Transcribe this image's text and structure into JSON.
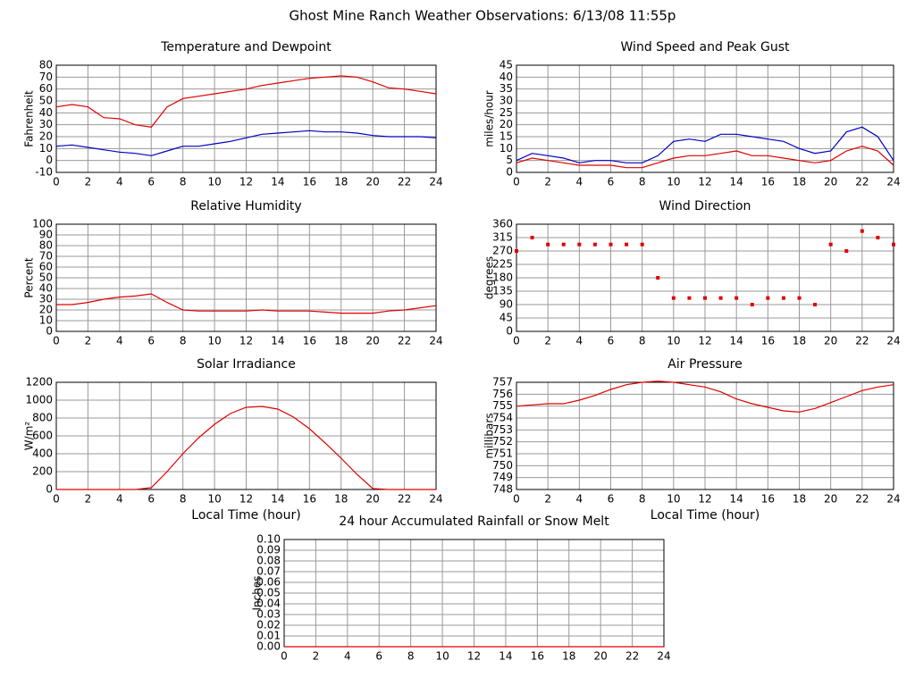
{
  "title": "Ghost Mine Ranch Weather Observations: 6/13/08 11:55p",
  "chart_data": [
    {
      "type": "line",
      "title": "Temperature and Dewpoint",
      "ylabel": "Fahrenheit",
      "x": [
        0,
        1,
        2,
        3,
        4,
        5,
        6,
        7,
        8,
        9,
        10,
        11,
        12,
        13,
        14,
        15,
        16,
        17,
        18,
        19,
        20,
        21,
        22,
        23,
        24
      ],
      "xlim": [
        0,
        24
      ],
      "xticks": [
        0,
        2,
        4,
        6,
        8,
        10,
        12,
        14,
        16,
        18,
        20,
        22,
        24
      ],
      "ylim": [
        -10,
        80
      ],
      "yticks": [
        -10,
        0,
        10,
        20,
        30,
        40,
        50,
        60,
        70,
        80
      ],
      "grid": true,
      "series": [
        {
          "color": "#e00000",
          "values": [
            45,
            47,
            45,
            36,
            35,
            30,
            28,
            45,
            52,
            54,
            56,
            58,
            60,
            63,
            65,
            67,
            69,
            70,
            71,
            70,
            66,
            61,
            60,
            58,
            56
          ]
        },
        {
          "color": "#0000c0",
          "values": [
            12,
            13,
            11,
            9,
            7,
            6,
            4,
            8,
            12,
            12,
            14,
            16,
            19,
            22,
            23,
            24,
            25,
            24,
            24,
            23,
            21,
            20,
            20,
            20,
            19
          ]
        }
      ]
    },
    {
      "type": "line",
      "title": "Wind Speed and Peak Gust",
      "ylabel": "miles/hour",
      "x": [
        0,
        1,
        2,
        3,
        4,
        5,
        6,
        7,
        8,
        9,
        10,
        11,
        12,
        13,
        14,
        15,
        16,
        17,
        18,
        19,
        20,
        21,
        22,
        23,
        24
      ],
      "xlim": [
        0,
        24
      ],
      "xticks": [
        0,
        2,
        4,
        6,
        8,
        10,
        12,
        14,
        16,
        18,
        20,
        22,
        24
      ],
      "ylim": [
        0,
        45
      ],
      "yticks": [
        0,
        5,
        10,
        15,
        20,
        25,
        30,
        35,
        40,
        45
      ],
      "grid": true,
      "series": [
        {
          "color": "#0000c0",
          "values": [
            5,
            8,
            7,
            6,
            4,
            5,
            5,
            4,
            4,
            7,
            13,
            14,
            13,
            16,
            16,
            15,
            14,
            13,
            10,
            8,
            9,
            17,
            19,
            15,
            5
          ]
        },
        {
          "color": "#e00000",
          "values": [
            4,
            6,
            5,
            4,
            3,
            3,
            3,
            2,
            2,
            4,
            6,
            7,
            7,
            8,
            9,
            7,
            7,
            6,
            5,
            4,
            5,
            9,
            11,
            9,
            3
          ]
        }
      ]
    },
    {
      "type": "line",
      "title": "Relative Humidity",
      "ylabel": "Percent",
      "x": [
        0,
        1,
        2,
        3,
        4,
        5,
        6,
        7,
        8,
        9,
        10,
        11,
        12,
        13,
        14,
        15,
        16,
        17,
        18,
        19,
        20,
        21,
        22,
        23,
        24
      ],
      "xlim": [
        0,
        24
      ],
      "xticks": [
        0,
        2,
        4,
        6,
        8,
        10,
        12,
        14,
        16,
        18,
        20,
        22,
        24
      ],
      "ylim": [
        0,
        100
      ],
      "yticks": [
        0,
        10,
        20,
        30,
        40,
        50,
        60,
        70,
        80,
        90,
        100
      ],
      "grid": true,
      "series": [
        {
          "color": "#e00000",
          "values": [
            25,
            25,
            27,
            30,
            32,
            33,
            35,
            27,
            20,
            19,
            19,
            19,
            19,
            20,
            19,
            19,
            19,
            18,
            17,
            17,
            17,
            19,
            20,
            22,
            24
          ]
        }
      ]
    },
    {
      "type": "scatter",
      "title": "Wind Direction",
      "ylabel": "degrees",
      "x": [
        0,
        1,
        2,
        3,
        4,
        5,
        6,
        7,
        8,
        9,
        10,
        11,
        12,
        13,
        14,
        15,
        16,
        17,
        18,
        19,
        20,
        21,
        22,
        23,
        24
      ],
      "xlim": [
        0,
        24
      ],
      "xticks": [
        0,
        2,
        4,
        6,
        8,
        10,
        12,
        14,
        16,
        18,
        20,
        22,
        24
      ],
      "ylim": [
        0,
        360
      ],
      "yticks": [
        0,
        45,
        90,
        135,
        180,
        225,
        270,
        315,
        360
      ],
      "grid": true,
      "series": [
        {
          "color": "#e00000",
          "values": [
            270,
            315,
            292,
            292,
            292,
            292,
            292,
            292,
            292,
            180,
            112,
            112,
            112,
            112,
            112,
            90,
            112,
            112,
            112,
            90,
            292,
            270,
            337,
            315,
            292
          ]
        }
      ]
    },
    {
      "type": "line",
      "title": "Solar Irradiance",
      "ylabel": "W/m²",
      "xlabel": "Local Time (hour)",
      "x": [
        0,
        1,
        2,
        3,
        4,
        5,
        6,
        7,
        8,
        9,
        10,
        11,
        12,
        13,
        14,
        15,
        16,
        17,
        18,
        19,
        20,
        21,
        22,
        23,
        24
      ],
      "xlim": [
        0,
        24
      ],
      "xticks": [
        0,
        2,
        4,
        6,
        8,
        10,
        12,
        14,
        16,
        18,
        20,
        22,
        24
      ],
      "ylim": [
        0,
        1200
      ],
      "yticks": [
        0,
        200,
        400,
        600,
        800,
        1000,
        1200
      ],
      "grid": true,
      "series": [
        {
          "color": "#e00000",
          "values": [
            0,
            0,
            0,
            0,
            0,
            0,
            20,
            200,
            400,
            580,
            730,
            850,
            920,
            930,
            900,
            810,
            680,
            520,
            350,
            170,
            10,
            0,
            0,
            0,
            0
          ]
        }
      ]
    },
    {
      "type": "line",
      "title": "Air Pressure",
      "ylabel": "millibars",
      "xlabel": "Local Time (hour)",
      "x": [
        0,
        1,
        2,
        3,
        4,
        5,
        6,
        7,
        8,
        9,
        10,
        11,
        12,
        13,
        14,
        15,
        16,
        17,
        18,
        19,
        20,
        21,
        22,
        23,
        24
      ],
      "xlim": [
        0,
        24
      ],
      "xticks": [
        0,
        2,
        4,
        6,
        8,
        10,
        12,
        14,
        16,
        18,
        20,
        22,
        24
      ],
      "ylim": [
        748,
        757
      ],
      "yticks": [
        748,
        749,
        750,
        751,
        752,
        753,
        754,
        755,
        756,
        757
      ],
      "grid": true,
      "series": [
        {
          "color": "#e00000",
          "values": [
            755,
            755.1,
            755.2,
            755.2,
            755.5,
            755.9,
            756.4,
            756.8,
            757,
            757.1,
            757,
            756.8,
            756.6,
            756.2,
            755.6,
            755.2,
            754.9,
            754.6,
            754.5,
            754.8,
            755.3,
            755.8,
            756.3,
            756.6,
            756.8
          ]
        }
      ]
    },
    {
      "type": "line",
      "title": "24 hour Accumulated Rainfall or Snow Melt",
      "ylabel": "Inches",
      "x": [
        0,
        1,
        2,
        3,
        4,
        5,
        6,
        7,
        8,
        9,
        10,
        11,
        12,
        13,
        14,
        15,
        16,
        17,
        18,
        19,
        20,
        21,
        22,
        23,
        24
      ],
      "xlim": [
        0,
        24
      ],
      "xticks": [
        0,
        2,
        4,
        6,
        8,
        10,
        12,
        14,
        16,
        18,
        20,
        22,
        24
      ],
      "ylim": [
        0,
        0.1
      ],
      "yticks": [
        {
          "value": 0,
          "label": "0.00"
        },
        {
          "value": 0.01,
          "label": "0.01"
        },
        {
          "value": 0.02,
          "label": "0.02"
        },
        {
          "value": 0.03,
          "label": "0.03"
        },
        {
          "value": 0.04,
          "label": "0.04"
        },
        {
          "value": 0.05,
          "label": "0.05"
        },
        {
          "value": 0.06,
          "label": "0.06"
        },
        {
          "value": 0.07,
          "label": "0.07"
        },
        {
          "value": 0.08,
          "label": "0.08"
        },
        {
          "value": 0.09,
          "label": "0.09"
        },
        {
          "value": 0.1,
          "label": "0.10"
        }
      ],
      "grid": true,
      "series": [
        {
          "color": "#e00000",
          "values": [
            0,
            0,
            0,
            0,
            0,
            0,
            0,
            0,
            0,
            0,
            0,
            0,
            0,
            0,
            0,
            0,
            0,
            0,
            0,
            0,
            0,
            0,
            0,
            0,
            0
          ]
        }
      ]
    }
  ]
}
